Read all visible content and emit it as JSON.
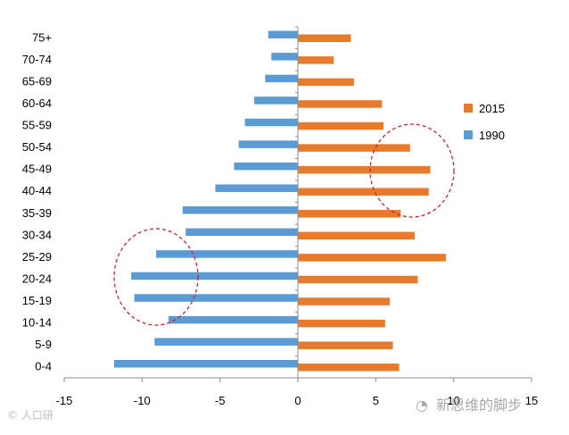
{
  "chart_data": {
    "type": "bar",
    "orientation": "horizontal",
    "categories": [
      "0-4",
      "5-9",
      "10-14",
      "15-19",
      "20-24",
      "25-29",
      "30-34",
      "35-39",
      "40-44",
      "45-49",
      "50-54",
      "55-59",
      "60-64",
      "65-69",
      "70-74",
      "75+"
    ],
    "series": [
      {
        "name": "2015",
        "color": "#E87A2C",
        "values": [
          6.5,
          6.1,
          5.6,
          5.9,
          7.7,
          9.5,
          7.5,
          6.6,
          8.4,
          8.5,
          7.2,
          5.5,
          5.4,
          3.6,
          2.3,
          3.4
        ]
      },
      {
        "name": "1990",
        "color": "#5B9BD5",
        "values": [
          -11.8,
          -9.2,
          -8.3,
          -10.5,
          -10.7,
          -9.1,
          -7.2,
          -7.4,
          -5.3,
          -4.1,
          -3.8,
          -3.4,
          -2.8,
          -2.1,
          -1.7,
          -1.9
        ]
      }
    ],
    "xlim": [
      -15,
      15
    ],
    "xticks": [
      "-15",
      "-10",
      "-5",
      "0",
      "5",
      "10",
      "15"
    ],
    "grid": false,
    "legend": "right",
    "xlabel": "",
    "ylabel": "",
    "annotations": [
      "dashed red circle around 40-54 bars of 2015",
      "dashed red circle around 15-29 bars of 1990"
    ]
  },
  "watermark": {
    "left_text": "人口研",
    "right_text": "新思维的脚步"
  },
  "colors": {
    "axis": "#8C8C8C",
    "circle": "#C0282E"
  }
}
